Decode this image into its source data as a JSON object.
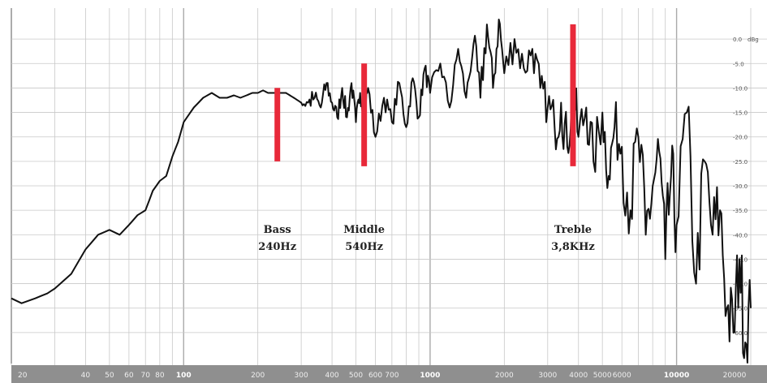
{
  "chart_data": {
    "type": "line",
    "title": "",
    "xlabel": "",
    "ylabel": "",
    "x_scale": "log",
    "xlim": [
      20,
      20000
    ],
    "ylim": [
      -65,
      5
    ],
    "grid": true,
    "colors": {
      "curve": "#111111",
      "marker": "#e8293a",
      "axis_bar": "#8f8f8f",
      "grid": "#c8c8c8"
    },
    "x_tick_labels": [
      "20",
      "40",
      "50",
      "60",
      "70",
      "80",
      "100",
      "200",
      "300",
      "400",
      "500",
      "600",
      "700",
      "1000",
      "2000",
      "3000",
      "4000",
      "5000",
      "6000",
      "10000",
      "20000"
    ],
    "x_tick_values": [
      20,
      40,
      50,
      60,
      70,
      80,
      100,
      200,
      300,
      400,
      500,
      600,
      700,
      1000,
      2000,
      3000,
      4000,
      5000,
      6000,
      10000,
      20000
    ],
    "x_major_ticks": [
      "100",
      "1000",
      "10000"
    ],
    "y_unit": "dBg",
    "y_tick_labels": [
      "0.0",
      "-5.0",
      "-10.0",
      "-15.0",
      "-20.0",
      "-25.0",
      "-30.0",
      "-35.0",
      "-40.0",
      "-45.0",
      "-50.0",
      "-55.0",
      "-60.0"
    ],
    "y_tick_values": [
      0,
      -5,
      -10,
      -15,
      -20,
      -25,
      -30,
      -35,
      -40,
      -45,
      -50,
      -55,
      -60
    ],
    "annotations": [
      {
        "label": "Bass",
        "freq_label": "240Hz",
        "x": 240,
        "y_range": [
          -10,
          -25
        ]
      },
      {
        "label": "Middle",
        "freq_label": "540Hz",
        "x": 540,
        "y_range": [
          -5,
          -26
        ]
      },
      {
        "label": "Treble",
        "freq_label": "3,8KHz",
        "x": 3800,
        "y_range": [
          3,
          -26
        ]
      }
    ],
    "series": [
      {
        "x": [
          20,
          22,
          25,
          28,
          30,
          35,
          40,
          45,
          50,
          55,
          60,
          65,
          70,
          75,
          80,
          85,
          90,
          95,
          100,
          110,
          120,
          130,
          140,
          150,
          160,
          170,
          180,
          190,
          200,
          210,
          220,
          240,
          260,
          280,
          300,
          320,
          340,
          360,
          380,
          400,
          420,
          440,
          460,
          480,
          500,
          520,
          540,
          560,
          600,
          650,
          700,
          750,
          800,
          850,
          900,
          950,
          1000,
          1100,
          1200,
          1300,
          1400,
          1500,
          1600,
          1700,
          1800,
          1900,
          2000,
          2200,
          2400,
          2600,
          2800,
          3000,
          3200,
          3400,
          3600,
          3800,
          4000,
          4300,
          4600,
          5000,
          5300,
          5600,
          6000,
          6500,
          7000,
          7500,
          8000,
          8500,
          9000,
          9500,
          10000,
          11000,
          12000,
          13000,
          14000,
          15000,
          16000,
          17000,
          18000,
          19000,
          20000
        ],
        "y": [
          -53,
          -54,
          -53,
          -52,
          -51,
          -48,
          -43,
          -40,
          -39,
          -40,
          -38,
          -36,
          -35,
          -31,
          -29,
          -28,
          -24,
          -21,
          -17,
          -14,
          -12,
          -11,
          -12,
          -12,
          -11.5,
          -12,
          -11.5,
          -11,
          -11,
          -10.5,
          -11,
          -11,
          -11,
          -12,
          -13,
          -13,
          -12,
          -14,
          -9,
          -13,
          -16,
          -10,
          -16,
          -9,
          -17,
          -11,
          -15,
          -10,
          -20,
          -12,
          -17,
          -9,
          -18,
          -8,
          -16,
          -6,
          -11,
          -5,
          -14,
          -2,
          -12,
          -1,
          -12,
          3,
          -10,
          4,
          -7,
          0,
          -6,
          -2,
          -10,
          -14,
          -18,
          -13,
          -22,
          -10,
          -20,
          -14,
          -25,
          -15,
          -28,
          -18,
          -22,
          -35,
          -20,
          -40,
          -30,
          -23,
          -45,
          -28,
          -38,
          -15,
          -50,
          -25,
          -40,
          -35,
          -55,
          -60,
          -45,
          -62,
          -55
        ]
      }
    ]
  }
}
